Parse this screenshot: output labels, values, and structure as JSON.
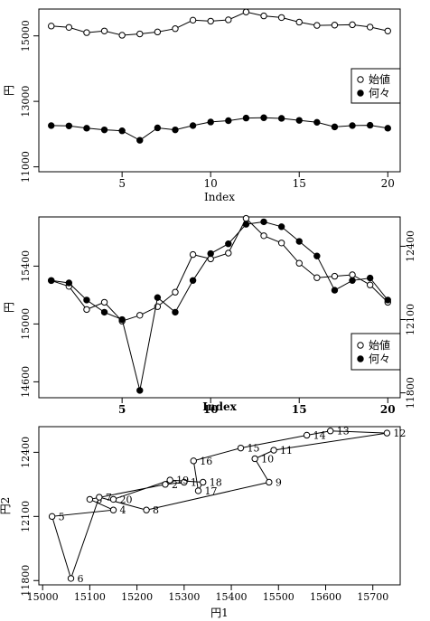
{
  "chart_data": [
    {
      "type": "line",
      "xlabel": "Index",
      "ylabel": "円",
      "x": [
        1,
        2,
        3,
        4,
        5,
        6,
        7,
        8,
        9,
        10,
        11,
        12,
        13,
        14,
        15,
        16,
        17,
        18,
        19,
        20
      ],
      "xlim": [
        0.3,
        20.7
      ],
      "xticks": [
        5,
        10,
        15,
        20
      ],
      "ylim": [
        10850,
        15820
      ],
      "yticks": [
        11000,
        13000,
        15000
      ],
      "legend_position": "right",
      "series": [
        {
          "name": "始値",
          "marker": "open-circle",
          "values": [
            15300,
            15260,
            15100,
            15150,
            15020,
            15060,
            15120,
            15220,
            15480,
            15450,
            15490,
            15730,
            15610,
            15560,
            15420,
            15320,
            15330,
            15340,
            15270,
            15150
          ]
        },
        {
          "name": "何々",
          "marker": "filled-circle",
          "values": [
            12260,
            12250,
            12180,
            12130,
            12100,
            11810,
            12190,
            12130,
            12260,
            12370,
            12410,
            12490,
            12500,
            12480,
            12420,
            12360,
            12220,
            12260,
            12270,
            12180
          ]
        }
      ]
    },
    {
      "type": "line",
      "xlabel": "Index",
      "ylabel": "円",
      "x": [
        1,
        2,
        3,
        4,
        5,
        6,
        7,
        8,
        9,
        10,
        11,
        12,
        13,
        14,
        15,
        16,
        17,
        18,
        19,
        20
      ],
      "xlim": [
        0.3,
        20.7
      ],
      "xticks": [
        5,
        10,
        15,
        20
      ],
      "ylim_left": [
        14490,
        15740
      ],
      "yticks_left": [
        14600,
        15000,
        15400
      ],
      "ylim_right": [
        11780,
        12520
      ],
      "yticks_right": [
        11800,
        12100,
        12400
      ],
      "legend_position": "bottom-right",
      "series": [
        {
          "name": "始値",
          "axis": "left",
          "marker": "open-circle",
          "values": [
            15300,
            15260,
            15100,
            15150,
            15020,
            15060,
            15120,
            15220,
            15480,
            15450,
            15490,
            15730,
            15610,
            15560,
            15420,
            15320,
            15330,
            15340,
            15270,
            15150
          ]
        },
        {
          "name": "何々",
          "axis": "right",
          "marker": "filled-circle",
          "values": [
            12260,
            12250,
            12180,
            12130,
            12100,
            11810,
            12190,
            12130,
            12260,
            12370,
            12410,
            12490,
            12500,
            12480,
            12420,
            12360,
            12220,
            12260,
            12270,
            12180
          ]
        }
      ]
    },
    {
      "type": "scatter",
      "xlabel": "円1",
      "ylabel": "円2",
      "xlim": [
        14992,
        15758
      ],
      "xticks": [
        15000,
        15100,
        15200,
        15300,
        15400,
        15500,
        15600,
        15700
      ],
      "ylim": [
        11780,
        12520
      ],
      "yticks": [
        11800,
        12100,
        12400
      ],
      "points": [
        {
          "x": 15300,
          "y": 12260,
          "label": "1"
        },
        {
          "x": 15260,
          "y": 12250,
          "label": "2"
        },
        {
          "x": 15100,
          "y": 12180,
          "label": "3"
        },
        {
          "x": 15150,
          "y": 12130,
          "label": "4"
        },
        {
          "x": 15020,
          "y": 12100,
          "label": "5"
        },
        {
          "x": 15060,
          "y": 11810,
          "label": "6"
        },
        {
          "x": 15120,
          "y": 12190,
          "label": "7"
        },
        {
          "x": 15220,
          "y": 12130,
          "label": "8"
        },
        {
          "x": 15480,
          "y": 12260,
          "label": "9"
        },
        {
          "x": 15450,
          "y": 12370,
          "label": "10"
        },
        {
          "x": 15490,
          "y": 12410,
          "label": "11"
        },
        {
          "x": 15730,
          "y": 12490,
          "label": "12"
        },
        {
          "x": 15610,
          "y": 12500,
          "label": "13"
        },
        {
          "x": 15560,
          "y": 12480,
          "label": "14"
        },
        {
          "x": 15420,
          "y": 12420,
          "label": "15"
        },
        {
          "x": 15320,
          "y": 12360,
          "label": "16"
        },
        {
          "x": 15330,
          "y": 12220,
          "label": "17"
        },
        {
          "x": 15340,
          "y": 12260,
          "label": "18"
        },
        {
          "x": 15270,
          "y": 12270,
          "label": "19"
        },
        {
          "x": 15150,
          "y": 12180,
          "label": "20"
        }
      ]
    }
  ]
}
